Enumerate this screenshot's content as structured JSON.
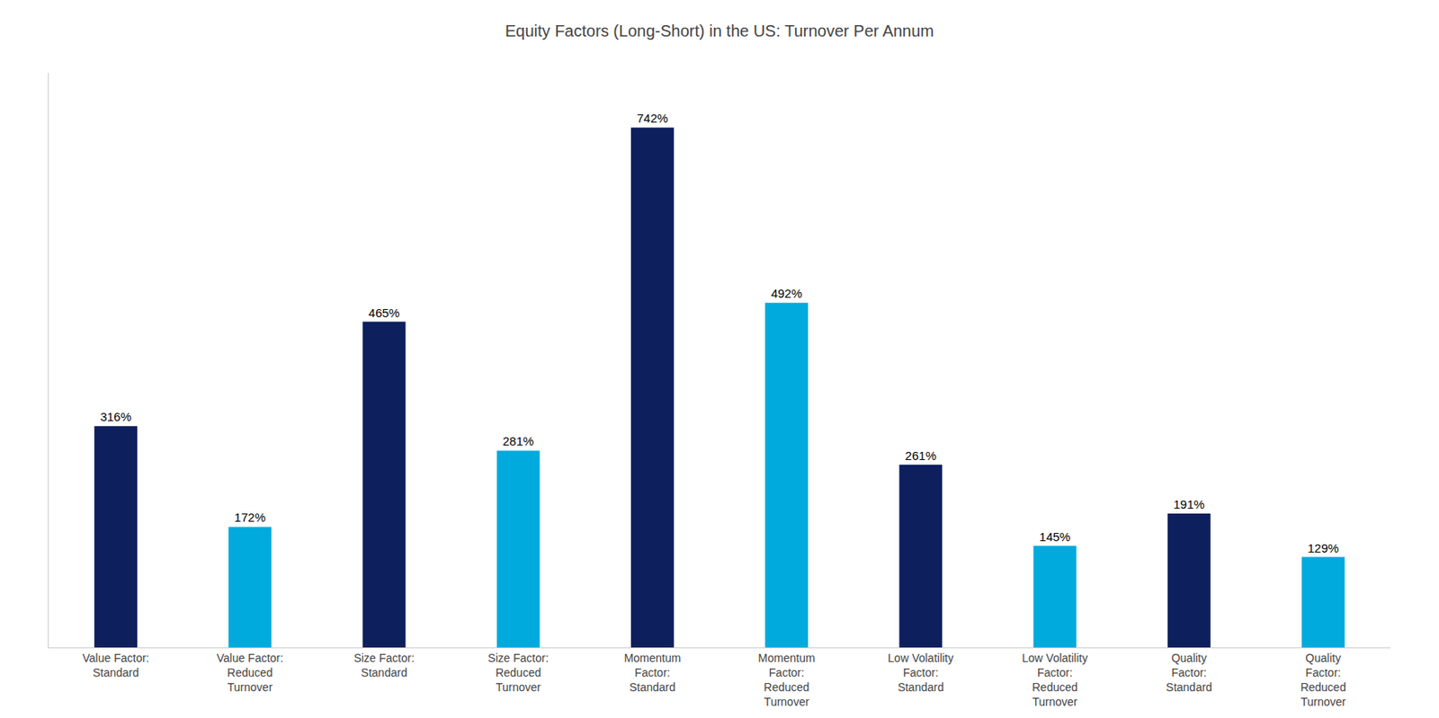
{
  "chart_data": {
    "type": "bar",
    "title": "Equity Factors (Long-Short) in the US: Turnover Per Annum",
    "categories": [
      "Value Factor:\nStandard",
      "Value Factor:\nReduced\nTurnover",
      "Size Factor:\nStandard",
      "Size Factor:\nReduced\nTurnover",
      "Momentum\nFactor:\nStandard",
      "Momentum\nFactor:\nReduced\nTurnover",
      "Low Volatility\nFactor:\nStandard",
      "Low Volatility\nFactor:\nReduced\nTurnover",
      "Quality\nFactor:\nStandard",
      "Quality\nFactor:\nReduced\nTurnover"
    ],
    "values": [
      316,
      172,
      465,
      281,
      742,
      492,
      261,
      145,
      191,
      129
    ],
    "value_labels": [
      "316%",
      "172%",
      "465%",
      "281%",
      "742%",
      "492%",
      "261%",
      "145%",
      "191%",
      "129%"
    ],
    "colors": [
      "#0d1f5c",
      "#00aadd",
      "#0d1f5c",
      "#00aadd",
      "#0d1f5c",
      "#00aadd",
      "#0d1f5c",
      "#00aadd",
      "#0d1f5c",
      "#00aadd"
    ],
    "ylim": [
      0,
      820
    ],
    "grid": false,
    "data_labels": true,
    "tick_labels": "x"
  }
}
